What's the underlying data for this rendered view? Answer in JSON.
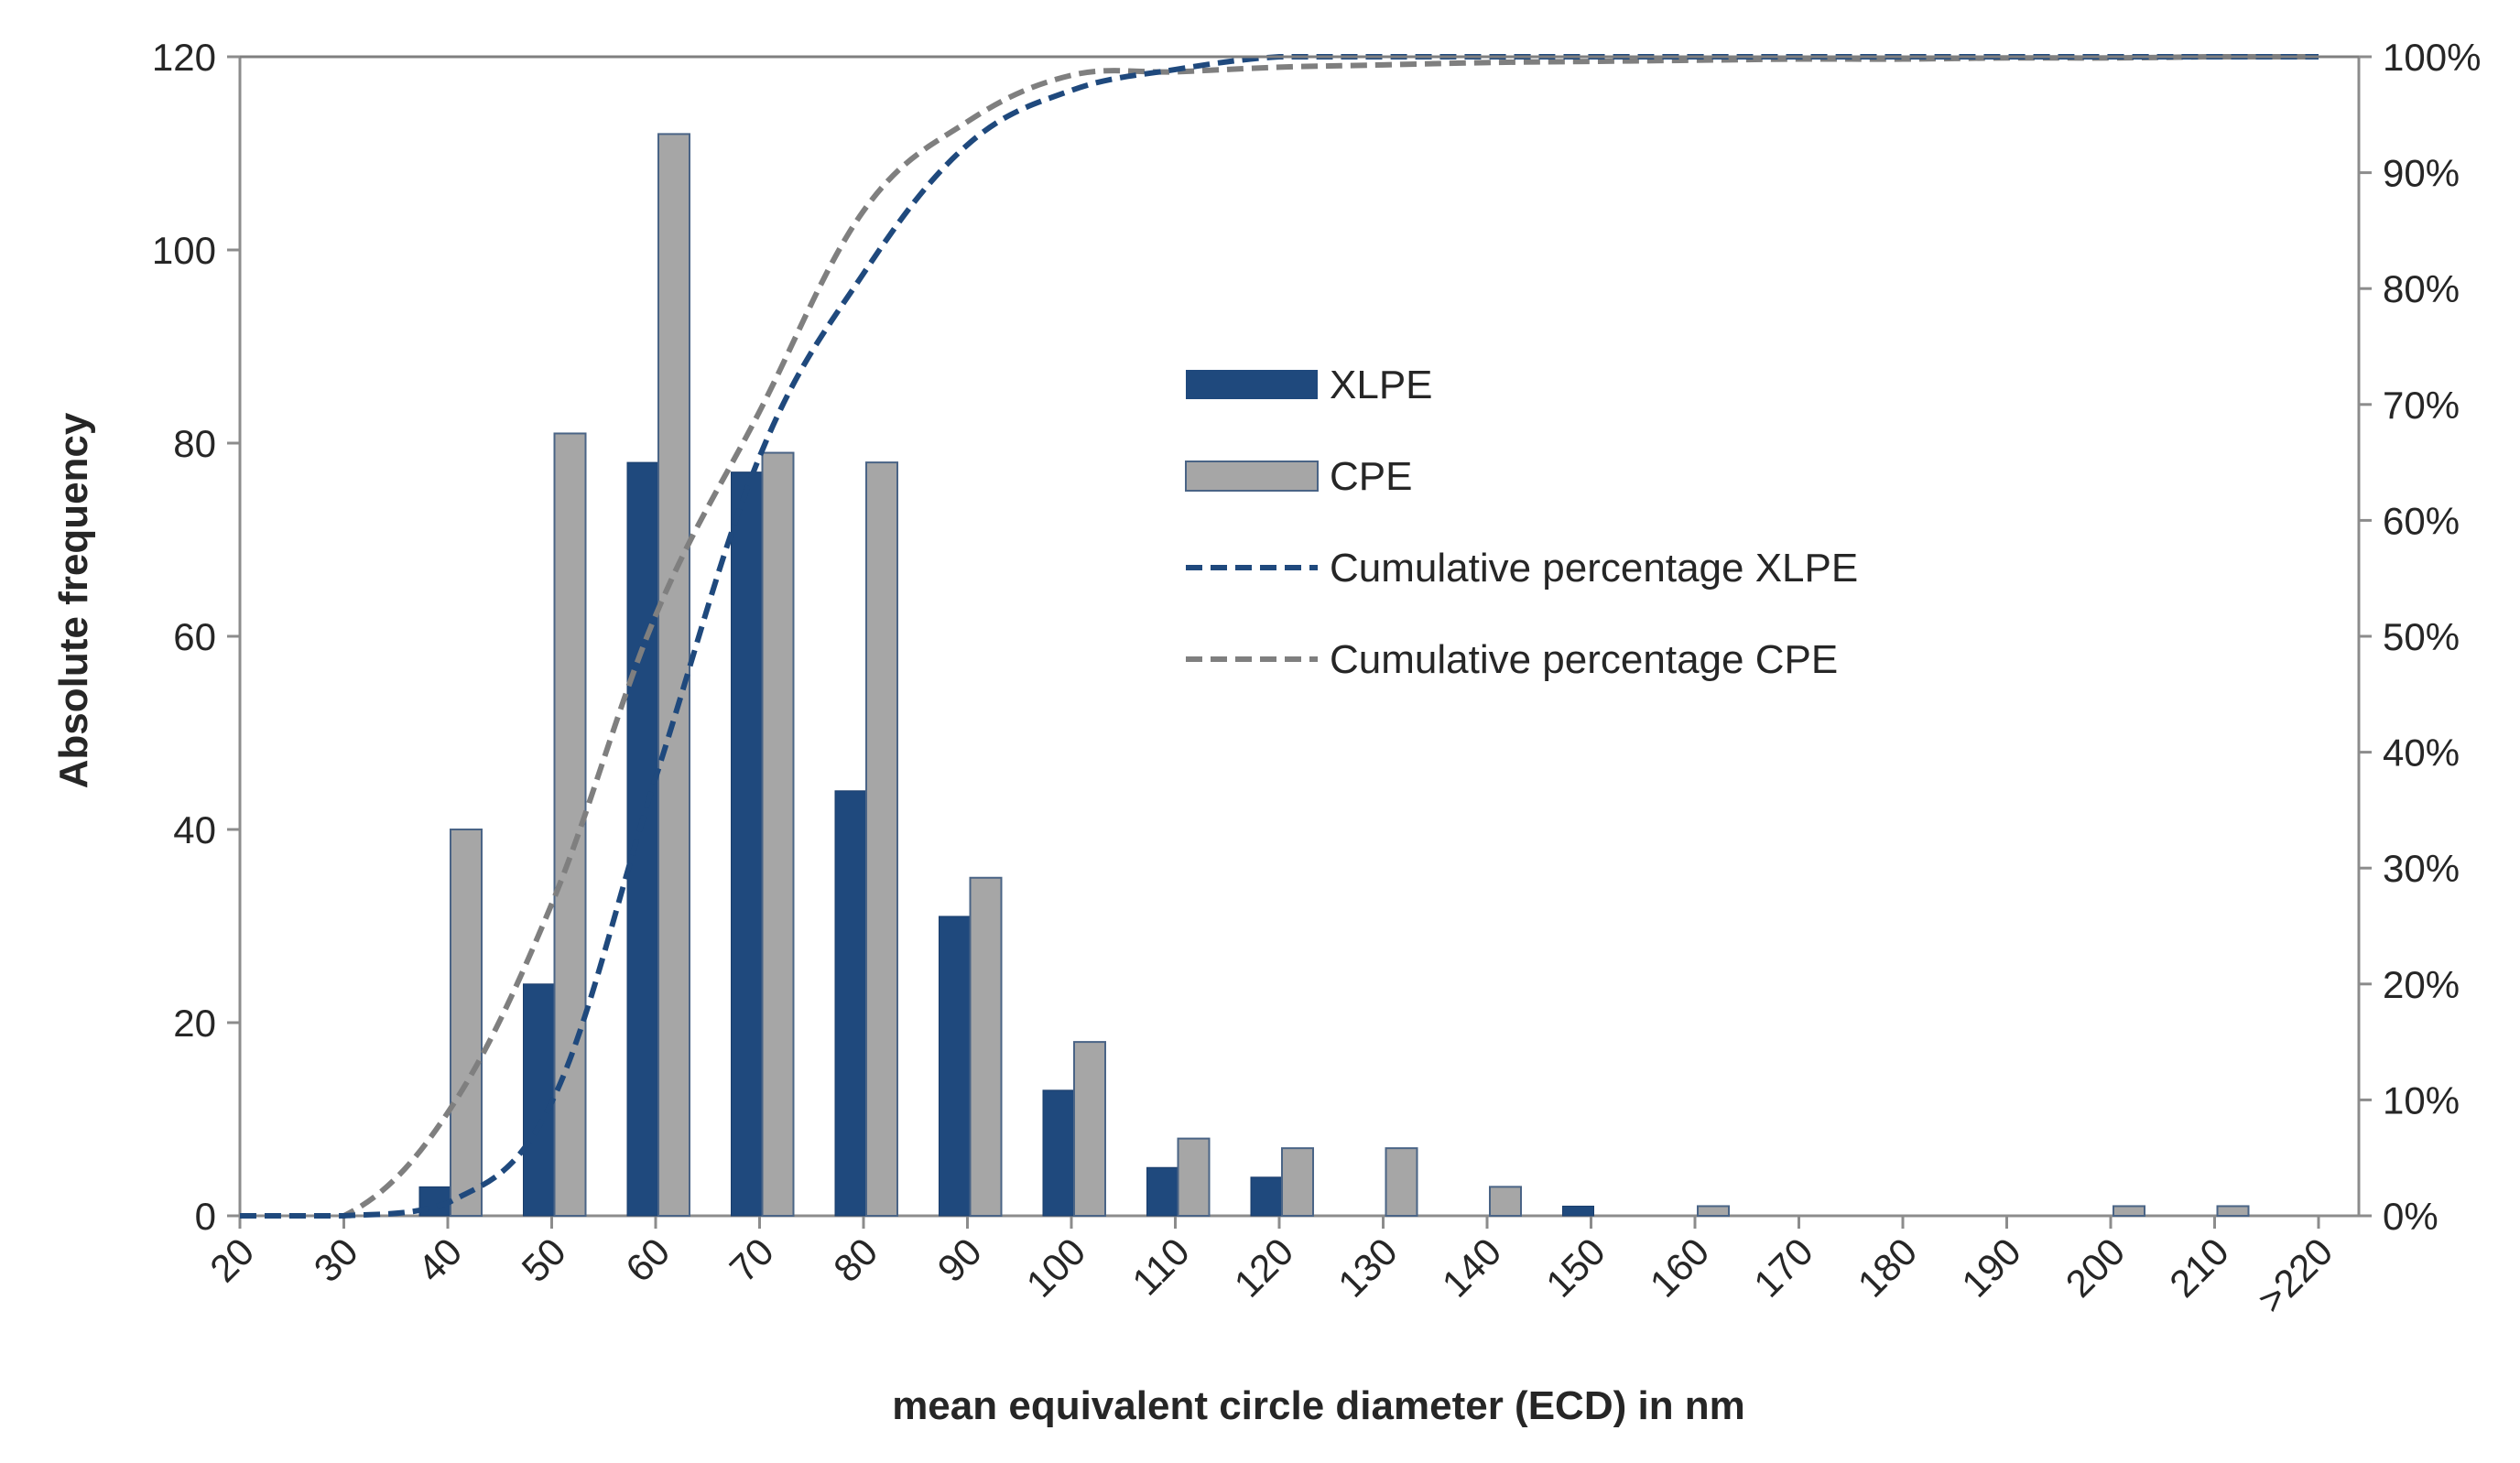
{
  "chart_data": {
    "type": "bar",
    "title": "",
    "xlabel": "mean equivalent circle diameter (ECD) in nm",
    "ylabel": "Absolute frequency",
    "ylim": [
      0,
      120
    ],
    "y_ticks": [
      "0",
      "20",
      "40",
      "60",
      "80",
      "100",
      "120"
    ],
    "y2lim": [
      0,
      100
    ],
    "y2_ticks": [
      "0%",
      "10%",
      "20%",
      "30%",
      "40%",
      "50%",
      "60%",
      "70%",
      "80%",
      "90%",
      "100%"
    ],
    "categories": [
      "20",
      "30",
      "40",
      "50",
      "60",
      "70",
      "80",
      "90",
      "100",
      "110",
      "120",
      "130",
      "140",
      "150",
      "160",
      "170",
      "180",
      "190",
      "200",
      "210",
      ">220"
    ],
    "series": [
      {
        "name": "XLPE",
        "kind": "bar",
        "color": "#1F497D",
        "values": [
          0,
          0,
          3,
          24,
          78,
          77,
          44,
          31,
          13,
          5,
          4,
          0,
          0,
          1,
          0,
          0,
          0,
          0,
          0,
          0,
          0
        ]
      },
      {
        "name": "CPE",
        "kind": "bar",
        "color": "#A6A6A6",
        "values": [
          0,
          0,
          40,
          81,
          112,
          79,
          78,
          35,
          18,
          8,
          7,
          7,
          3,
          0,
          1,
          0,
          0,
          0,
          1,
          1,
          0
        ]
      },
      {
        "name": "Cumulative percentage XLPE",
        "kind": "line",
        "axis": "right",
        "color": "#1F497D",
        "values": [
          0,
          0,
          1.1,
          9.8,
          37.8,
          65.5,
          81.3,
          92.4,
          97.1,
          98.9,
          100,
          100,
          100,
          100,
          100,
          100,
          100,
          100,
          100,
          100,
          100
        ]
      },
      {
        "name": "Cumulative percentage CPE",
        "kind": "line",
        "axis": "right",
        "color": "#7F7F7F",
        "values": [
          0,
          0,
          8.9,
          26.9,
          51.8,
          69.4,
          86.7,
          94.4,
          98.4,
          98.7,
          99.1,
          99.3,
          99.5,
          99.6,
          99.7,
          99.8,
          99.8,
          99.9,
          99.9,
          100,
          100
        ]
      }
    ],
    "legend": {
      "position": "upper-center-inside"
    }
  }
}
